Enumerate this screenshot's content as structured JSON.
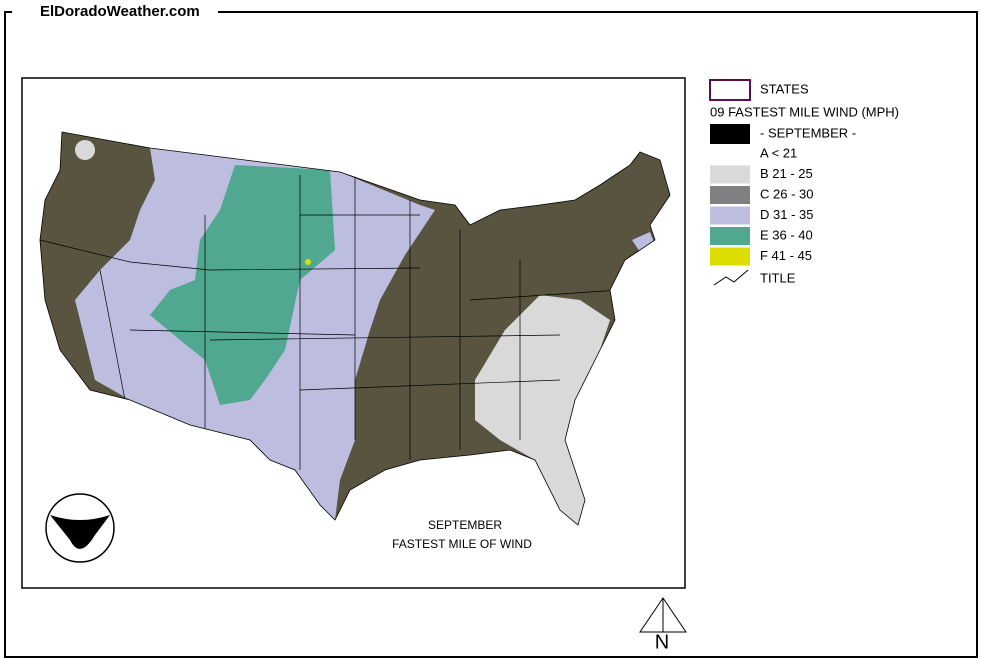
{
  "header": {
    "site": "ElDoradoWeather.com"
  },
  "legend": {
    "states_label": "STATES",
    "title": "09 FASTEST MILE WIND (MPH)",
    "month": "- SEPTEMBER -",
    "items": [
      {
        "label": "A < 21"
      },
      {
        "label": "B 21 - 25",
        "color": "#d9d9d9"
      },
      {
        "label": "C 26 - 30",
        "color": "#808080"
      },
      {
        "label": "D 31 - 35",
        "color": "#bdbde0"
      },
      {
        "label": "E 36 - 40",
        "color": "#4fa88f"
      },
      {
        "label": "F 41 - 45",
        "color": "#dddd00"
      }
    ],
    "title_symbol_label": "TITLE"
  },
  "map": {
    "caption_line1": "SEPTEMBER",
    "caption_line2": "FASTEST MILE OF WIND",
    "north_label": "N"
  }
}
